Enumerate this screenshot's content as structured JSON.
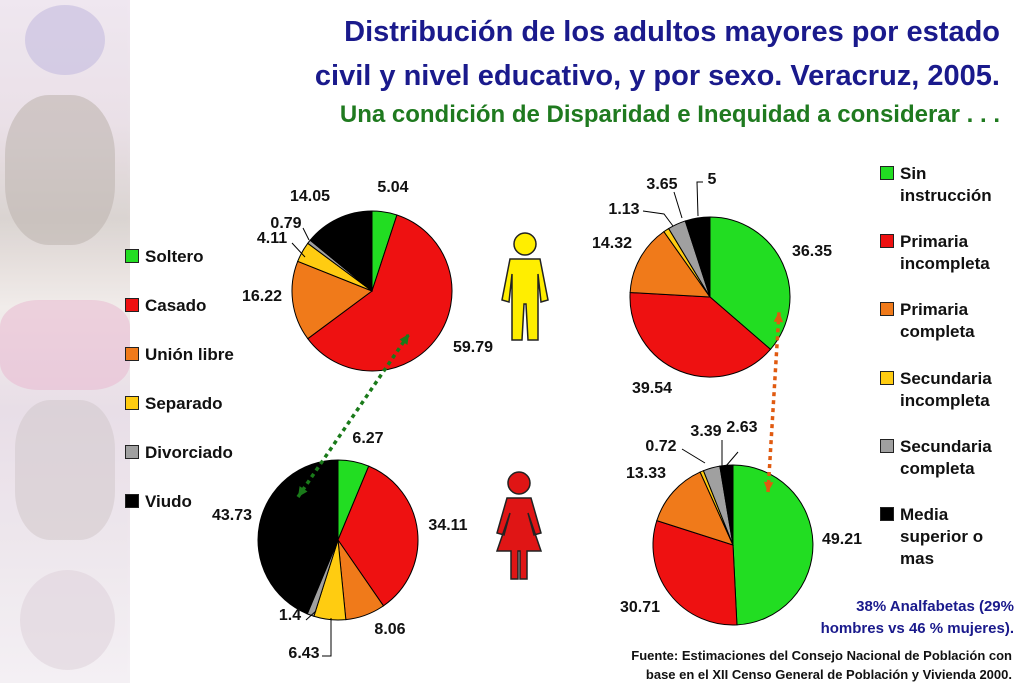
{
  "title_line1": "Distribución de los adultos mayores por estado",
  "title_line2": "civil y nivel educativo, y por sexo. Veracruz, 2005.",
  "subtitle": "Una condición de Disparidad e Inequidad a considerar . . .",
  "note_line1": "38% Analfabetas (29%",
  "note_line2": "hombres vs 46 % mujeres).",
  "source_line1": "Fuente: Estimaciones del Consejo Nacional de Población con",
  "source_line2": "base en el XII Censo General de Población y Vivienda 2000.",
  "colors": {
    "green": "#22dd22",
    "red": "#ee1111",
    "orange": "#f07a1a",
    "yellow": "#ffcc11",
    "gray": "#a0a0a0",
    "black": "#000000",
    "arrow_green": "#1a7a1a",
    "arrow_orange": "#e05a10",
    "male": "#ffee00",
    "female": "#e01515"
  },
  "chart_data": [
    {
      "type": "pie",
      "group": "estado civil, hombres",
      "categories": [
        "Soltero",
        "Casado",
        "Unión libre",
        "Separado",
        "Divorciado",
        "Viudo"
      ],
      "values": [
        5.04,
        59.79,
        16.22,
        4.11,
        0.79,
        14.05
      ],
      "labels": [
        "5.04",
        "59.79",
        "16.22",
        "4.11",
        "0.79",
        "14.05"
      ]
    },
    {
      "type": "pie",
      "group": "estado civil, mujeres",
      "categories": [
        "Soltero",
        "Casado",
        "Unión libre",
        "Separado",
        "Divorciado",
        "Viudo"
      ],
      "values": [
        6.27,
        34.11,
        8.06,
        6.43,
        1.4,
        43.73
      ],
      "labels": [
        "6.27",
        "34.11",
        "8.06",
        "6.43",
        "1.4",
        "43.73"
      ]
    },
    {
      "type": "pie",
      "group": "nivel educativo, hombres",
      "categories": [
        "Sin instrucción",
        "Primaria incompleta",
        "Primaria completa",
        "Secundaria incompleta",
        "Secundaria completa",
        "Media superior o mas"
      ],
      "values": [
        36.35,
        39.54,
        14.32,
        1.13,
        3.65,
        5
      ],
      "labels": [
        "36.35",
        "39.54",
        "14.32",
        "1.13",
        "3.65",
        "5"
      ]
    },
    {
      "type": "pie",
      "group": "nivel educativo, mujeres",
      "categories": [
        "Sin instrucción",
        "Primaria incompleta",
        "Primaria completa",
        "Secundaria incompleta",
        "Secundaria completa",
        "Media superior o mas"
      ],
      "values": [
        49.21,
        30.71,
        13.33,
        0.72,
        3.39,
        2.63
      ],
      "labels": [
        "49.21",
        "30.71",
        "13.33",
        "0.72",
        "3.39",
        "2.63"
      ]
    }
  ],
  "legend_left": [
    "Soltero",
    "Casado",
    "Unión libre",
    "Separado",
    "Divorciado",
    "Viudo"
  ],
  "legend_right": [
    [
      "Sin",
      "instrucción"
    ],
    [
      "Primaria",
      "incompleta"
    ],
    [
      "Primaria",
      "completa"
    ],
    [
      "Secundaria",
      "incompleta"
    ],
    [
      "Secundaria",
      "completa"
    ],
    [
      "Media",
      "superior o",
      "mas"
    ]
  ]
}
